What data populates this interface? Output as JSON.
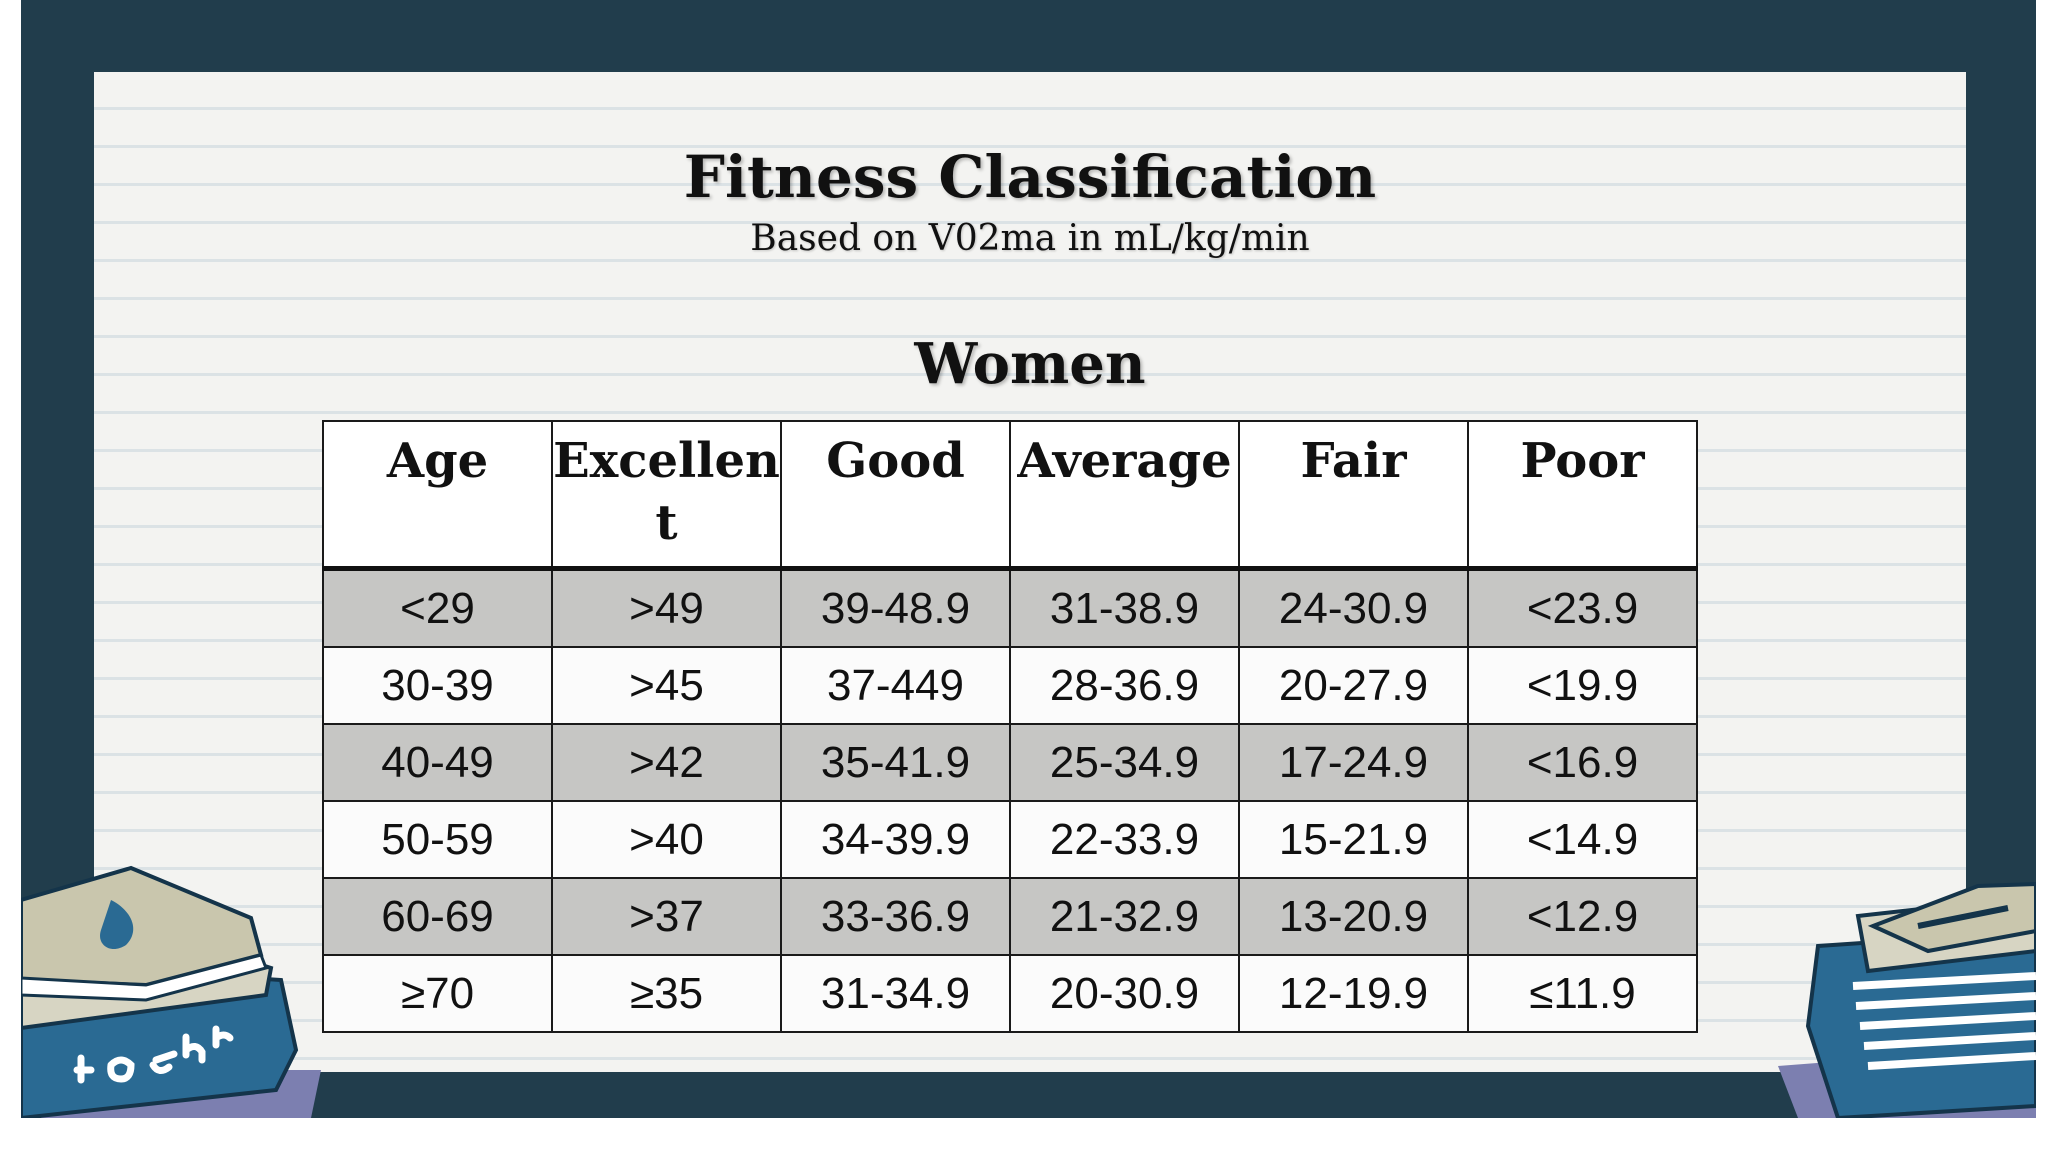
{
  "slide": {
    "title": "Fitness Classification",
    "subtitle": "Based on V02ma in mL/kg/min",
    "section_heading": "Women"
  },
  "table": {
    "headers": [
      "Age",
      "Excellent",
      "Good",
      "Average",
      "Fair",
      "Poor"
    ],
    "rows": [
      [
        "<29",
        ">49",
        "39-48.9",
        "31-38.9",
        "24-30.9",
        "<23.9"
      ],
      [
        "30-39",
        ">45",
        "37-449",
        "28-36.9",
        "20-27.9",
        "<19.9"
      ],
      [
        "40-49",
        ">42",
        "35-41.9",
        "25-34.9",
        "17-24.9",
        "<16.9"
      ],
      [
        "50-59",
        ">40",
        "34-39.9",
        "22-33.9",
        "15-21.9",
        "<14.9"
      ],
      [
        "60-69",
        ">37",
        "33-36.9",
        "21-32.9",
        "13-20.9",
        "<12.9"
      ],
      [
        "≥70",
        "≥35",
        "31-34.9",
        "20-30.9",
        "12-19.9",
        "≤11.9"
      ]
    ]
  },
  "colors": {
    "frame": "#213d4c",
    "paper": "#f3f3f1",
    "shaded_row": "#c6c6c4",
    "book_blue": "#2a6a93",
    "book_cover": "#c9c6ad"
  },
  "decorations": {
    "left_book_stack_icon": "book-stack-icon",
    "right_book_stack_icon": "book-stack-icon"
  }
}
